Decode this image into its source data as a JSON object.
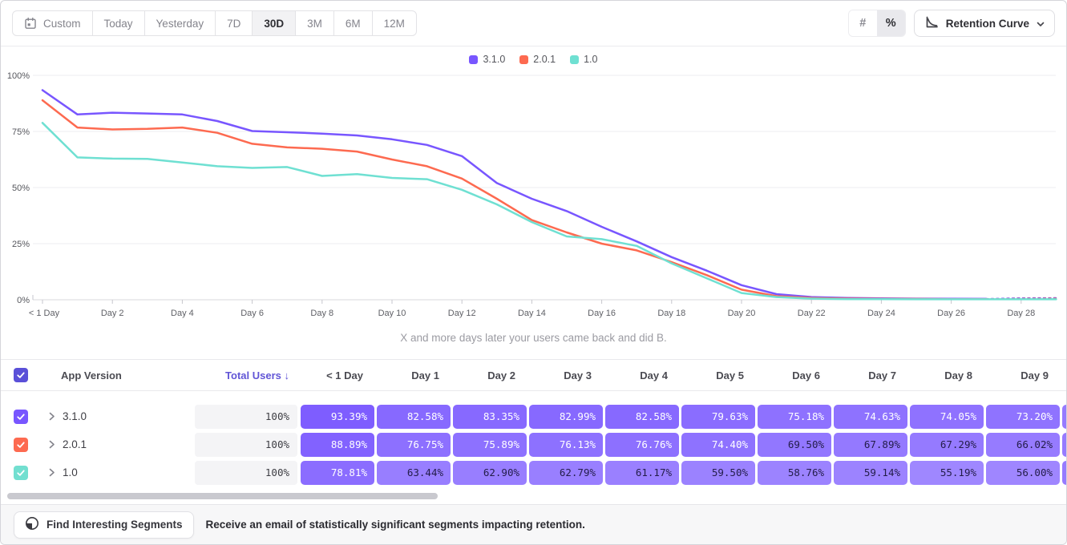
{
  "toolbar": {
    "ranges": [],
    "range_buttons": [
      {
        "label": "Custom",
        "icon": "calendar"
      },
      {
        "label": "Today"
      },
      {
        "label": "Yesterday"
      },
      {
        "label": "7D"
      },
      {
        "label": "30D"
      },
      {
        "label": "3M"
      },
      {
        "label": "6M"
      },
      {
        "label": "12M"
      }
    ],
    "selected_range": "30D",
    "modes": [
      "#",
      "%"
    ],
    "selected_mode": "%",
    "chart_type_label": "Retention Curve"
  },
  "chart_data": {
    "type": "line",
    "subtitle": "X and more days later your users came back and did B.",
    "ylabel": "",
    "xlabel": "",
    "ylim": [
      0,
      100
    ],
    "y_tick_labels": [
      "0%",
      "25%",
      "50%",
      "75%",
      "100%"
    ],
    "x_tick_labels": [
      "< 1 Day",
      "Day 2",
      "Day 4",
      "Day 6",
      "Day 8",
      "Day 10",
      "Day 12",
      "Day 14",
      "Day 16",
      "Day 18",
      "Day 20",
      "Day 22",
      "Day 24",
      "Day 26",
      "Day 28"
    ],
    "x_tick_days": [
      0,
      2,
      4,
      6,
      8,
      10,
      12,
      14,
      16,
      18,
      20,
      22,
      24,
      26,
      28
    ],
    "legend_position": "top-center",
    "grid": true,
    "series": [
      {
        "name": "3.1.0",
        "color": "#7856ff",
        "dash_from_day": 27,
        "values": [
          93.39,
          82.58,
          83.35,
          82.99,
          82.58,
          79.63,
          75.18,
          74.63,
          74.05,
          73.2,
          71.5,
          69.0,
          64.0,
          52.0,
          45.0,
          39.5,
          32.5,
          26.0,
          19.0,
          13.0,
          6.5,
          2.5,
          1.2,
          0.8,
          0.6,
          0.5,
          0.45,
          0.4,
          0.7,
          0.8
        ]
      },
      {
        "name": "2.0.1",
        "color": "#fd6a50",
        "dash_from_day": 27,
        "values": [
          88.89,
          76.75,
          75.89,
          76.13,
          76.76,
          74.4,
          69.5,
          67.89,
          67.29,
          66.02,
          62.5,
          59.5,
          54.0,
          45.0,
          35.5,
          30.0,
          25.0,
          22.0,
          16.8,
          11.0,
          4.5,
          1.6,
          0.8,
          0.5,
          0.4,
          0.35,
          0.3,
          0.3,
          0.45,
          0.55
        ]
      },
      {
        "name": "1.0",
        "color": "#6fe0d2",
        "values": [
          78.81,
          63.44,
          62.9,
          62.79,
          61.17,
          59.5,
          58.76,
          59.14,
          55.19,
          56.0,
          54.3,
          53.7,
          49.0,
          42.5,
          34.6,
          28.2,
          27.0,
          24.0,
          16.2,
          9.6,
          3.0,
          1.2,
          0.5,
          0.3,
          0.25,
          0.2,
          0.2,
          0.2,
          0.2,
          0.2
        ]
      }
    ]
  },
  "table": {
    "header": {
      "version_col": "App Version",
      "total_col": "Total Users",
      "sort_arrow": "↓",
      "day_cols": [
        "< 1 Day",
        "Day 1",
        "Day 2",
        "Day 3",
        "Day 4",
        "Day 5",
        "Day 6",
        "Day 7",
        "Day 8",
        "Day 9"
      ]
    },
    "header_checkbox_color": "#5a50d8",
    "rows": [
      {
        "version": "3.1.0",
        "color": "#7856ff",
        "total": "100%",
        "values": [
          93.39,
          82.58,
          83.35,
          82.99,
          82.58,
          79.63,
          75.18,
          74.63,
          74.05,
          73.2
        ]
      },
      {
        "version": "2.0.1",
        "color": "#fd6a50",
        "total": "100%",
        "values": [
          88.89,
          76.75,
          75.89,
          76.13,
          76.76,
          74.4,
          69.5,
          67.89,
          67.29,
          66.02
        ]
      },
      {
        "version": "1.0",
        "color": "#72dfd0",
        "total": "100%",
        "values": [
          78.81,
          63.44,
          62.9,
          62.79,
          61.17,
          59.5,
          58.76,
          59.14,
          55.19,
          56.0
        ]
      }
    ],
    "cell_base_color": "#7856ff"
  },
  "footer": {
    "button_label": "Find Interesting Segments",
    "message": "Receive an email of statistically significant segments impacting retention."
  }
}
